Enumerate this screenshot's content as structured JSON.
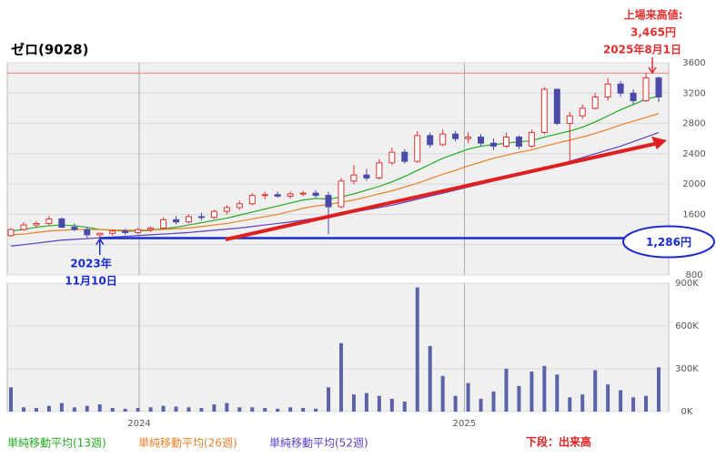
{
  "chart_data": {
    "type": "candlestick",
    "title": "ゼロ(9028)",
    "categories": [
      null,
      null,
      null,
      null,
      null,
      null,
      null,
      null,
      null,
      null,
      null,
      null,
      null,
      null,
      null,
      null,
      null,
      null,
      null,
      null,
      null,
      null,
      null,
      null,
      null,
      null,
      null,
      null,
      null,
      null,
      null,
      null,
      null,
      null,
      null,
      null,
      null,
      null,
      null,
      null,
      null,
      null,
      null,
      null,
      null,
      null,
      null,
      null,
      null,
      null,
      null,
      null
    ],
    "open": [
      1320,
      1400,
      1460,
      1480,
      1540,
      1430,
      1400,
      1330,
      1350,
      1380,
      1360,
      1400,
      1420,
      1530,
      1500,
      1570,
      1560,
      1640,
      1690,
      1740,
      1850,
      1860,
      1840,
      1870,
      1880,
      1850,
      1700,
      2040,
      2120,
      2080,
      2280,
      2420,
      2300,
      2640,
      2520,
      2660,
      2600,
      2620,
      2540,
      2500,
      2620,
      2500,
      2680,
      3250,
      2800,
      2900,
      3000,
      3150,
      3320,
      3200,
      3100,
      3400
    ],
    "high": [
      1420,
      1500,
      1510,
      1580,
      1560,
      1480,
      1430,
      1360,
      1400,
      1410,
      1420,
      1440,
      1560,
      1580,
      1600,
      1620,
      1660,
      1720,
      1780,
      1880,
      1900,
      1900,
      1900,
      1910,
      1920,
      1900,
      2080,
      2250,
      2200,
      2330,
      2480,
      2460,
      2700,
      2680,
      2720,
      2700,
      2680,
      2660,
      2600,
      2680,
      2640,
      2720,
      3280,
      3260,
      2950,
      3050,
      3200,
      3400,
      3360,
      3250,
      3465,
      3420
    ],
    "low": [
      1300,
      1380,
      1420,
      1460,
      1420,
      1380,
      1290,
      1286,
      1320,
      1330,
      1340,
      1370,
      1410,
      1470,
      1480,
      1520,
      1540,
      1600,
      1660,
      1720,
      1800,
      1820,
      1810,
      1840,
      1820,
      1340,
      1680,
      2000,
      2040,
      2060,
      2250,
      2270,
      2280,
      2480,
      2500,
      2560,
      2540,
      2500,
      2450,
      2480,
      2460,
      2480,
      2660,
      2780,
      2300,
      2860,
      2980,
      3100,
      3150,
      3050,
      3080,
      3080
    ],
    "close": [
      1400,
      1460,
      1480,
      1540,
      1430,
      1400,
      1330,
      1350,
      1380,
      1360,
      1400,
      1420,
      1530,
      1500,
      1570,
      1560,
      1640,
      1690,
      1740,
      1850,
      1860,
      1840,
      1870,
      1880,
      1850,
      1700,
      2040,
      2120,
      2080,
      2280,
      2420,
      2300,
      2640,
      2520,
      2660,
      2600,
      2620,
      2540,
      2500,
      2620,
      2500,
      2680,
      3250,
      2800,
      2900,
      3000,
      3150,
      3320,
      3200,
      3100,
      3400,
      3150
    ],
    "up_color": "#e03030",
    "down_color": "#4a4aa8",
    "series": [
      {
        "name": "単純移動平均(13週)",
        "color": "#22aa22",
        "values": [
          1380,
          1400,
          1430,
          1450,
          1460,
          1450,
          1430,
          1400,
          1390,
          1380,
          1380,
          1390,
          1410,
          1430,
          1460,
          1490,
          1520,
          1550,
          1590,
          1630,
          1670,
          1710,
          1750,
          1790,
          1810,
          1800,
          1830,
          1870,
          1920,
          1970,
          2030,
          2100,
          2180,
          2260,
          2340,
          2400,
          2460,
          2500,
          2520,
          2540,
          2560,
          2570,
          2620,
          2660,
          2700,
          2750,
          2820,
          2900,
          2980,
          3050,
          3120,
          3160
        ]
      },
      {
        "name": "単純移動平均(26週)",
        "color": "#e8802a",
        "values": [
          1330,
          1340,
          1360,
          1380,
          1390,
          1400,
          1400,
          1400,
          1395,
          1390,
          1390,
          1395,
          1400,
          1410,
          1420,
          1440,
          1460,
          1480,
          1510,
          1540,
          1570,
          1600,
          1640,
          1680,
          1710,
          1730,
          1760,
          1790,
          1830,
          1870,
          1910,
          1960,
          2010,
          2070,
          2130,
          2180,
          2240,
          2290,
          2340,
          2380,
          2420,
          2450,
          2500,
          2540,
          2580,
          2620,
          2670,
          2720,
          2780,
          2830,
          2880,
          2930
        ]
      },
      {
        "name": "単純移動平均(52週)",
        "color": "#5b3fc4",
        "values": [
          1180,
          1200,
          1220,
          1240,
          1260,
          1270,
          1280,
          1290,
          1300,
          1310,
          1320,
          1330,
          1340,
          1350,
          1360,
          1375,
          1390,
          1405,
          1420,
          1440,
          1460,
          1480,
          1500,
          1525,
          1550,
          1575,
          1600,
          1630,
          1660,
          1690,
          1720,
          1760,
          1800,
          1840,
          1880,
          1920,
          1960,
          2000,
          2040,
          2080,
          2120,
          2160,
          2200,
          2250,
          2300,
          2350,
          2400,
          2450,
          2500,
          2560,
          2620,
          2680
        ]
      }
    ],
    "ylim": [
      800,
      3600
    ],
    "yticks": [
      800,
      1200,
      1600,
      2000,
      2400,
      2800,
      3200,
      3600
    ],
    "xticks": [
      {
        "value": 10.1,
        "label": "2024"
      },
      {
        "value": 35.7,
        "label": "2025"
      }
    ],
    "grid": true,
    "volume": {
      "name": "下段：出来高",
      "color": "#5c62a8",
      "ylim": [
        0,
        900000
      ],
      "yticks": [
        {
          "value": 0,
          "label": "0K"
        },
        {
          "value": 300000,
          "label": "300K"
        },
        {
          "value": 600000,
          "label": "600K"
        },
        {
          "value": 900000,
          "label": "900K"
        }
      ],
      "values": [
        170000,
        30000,
        25000,
        40000,
        60000,
        30000,
        40000,
        50000,
        25000,
        20000,
        25000,
        30000,
        40000,
        35000,
        30000,
        25000,
        50000,
        60000,
        30000,
        30000,
        25000,
        20000,
        30000,
        25000,
        20000,
        170000,
        480000,
        120000,
        130000,
        110000,
        90000,
        70000,
        870000,
        460000,
        250000,
        110000,
        200000,
        90000,
        140000,
        300000,
        180000,
        280000,
        320000,
        260000,
        100000,
        120000,
        290000,
        190000,
        150000,
        100000,
        110000,
        310000
      ]
    },
    "high_mark": {
      "title": "上場来高値:",
      "value": 3465,
      "label": "3,465円",
      "date": "2025年8月1日",
      "color": "#e03030"
    },
    "low_mark": {
      "value": 1286,
      "label": "1,286円",
      "year": "2023年",
      "date": "11月10日",
      "index": 7,
      "color": "#1a2bd0"
    }
  }
}
